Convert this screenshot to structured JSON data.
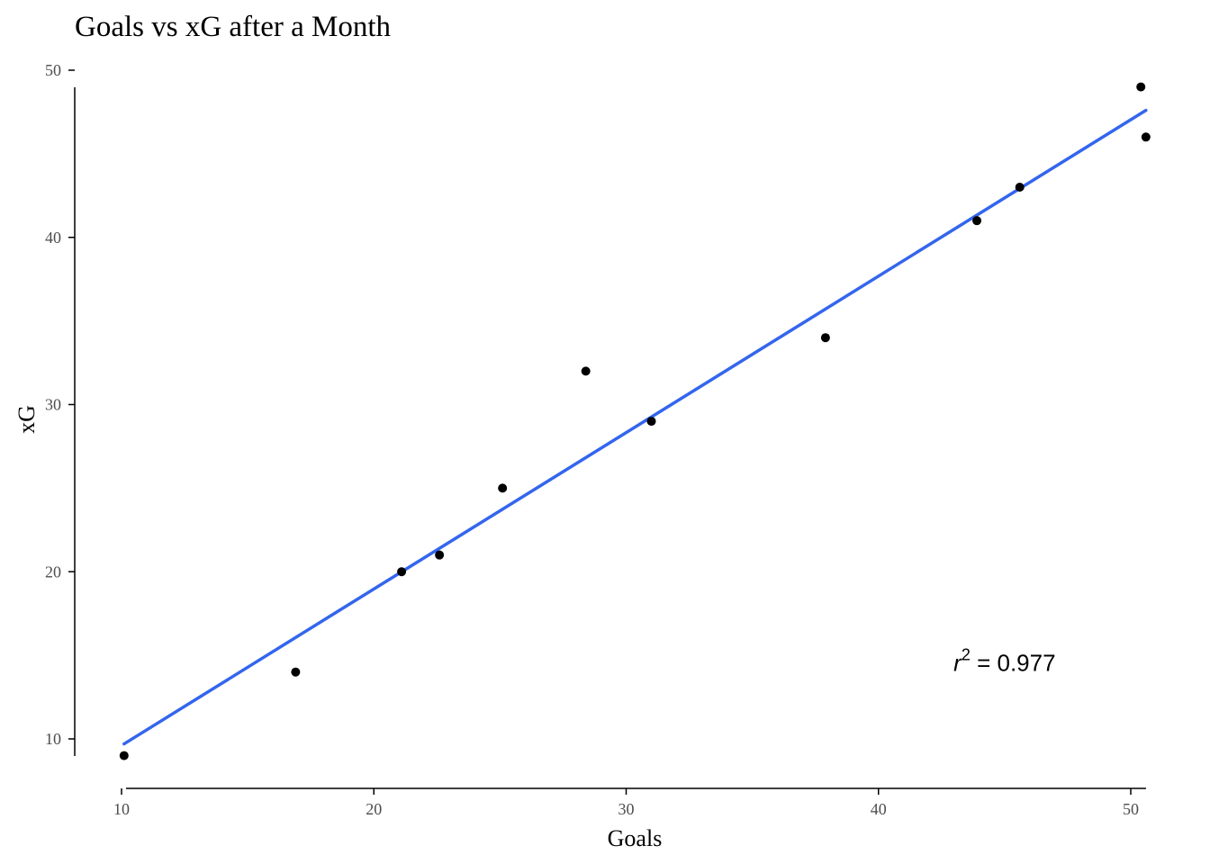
{
  "chart_data": {
    "type": "scatter",
    "title": "Goals vs xG after a Month",
    "xlabel": "Goals",
    "ylabel": "xG",
    "xlim": [
      10,
      50.5
    ],
    "ylim": [
      9,
      49
    ],
    "x_ticks": [
      10,
      20,
      30,
      40,
      50
    ],
    "y_ticks": [
      10,
      20,
      30,
      40,
      50
    ],
    "x_tick_labels": [
      "10",
      "20",
      "30",
      "40",
      "50"
    ],
    "y_tick_labels": [
      "10",
      "20",
      "30",
      "40",
      "50"
    ],
    "grid": false,
    "points": [
      {
        "x": 10.1,
        "y": 9
      },
      {
        "x": 16.9,
        "y": 14
      },
      {
        "x": 21.1,
        "y": 20
      },
      {
        "x": 22.6,
        "y": 21
      },
      {
        "x": 25.1,
        "y": 25
      },
      {
        "x": 28.4,
        "y": 32
      },
      {
        "x": 31.0,
        "y": 29
      },
      {
        "x": 37.9,
        "y": 34
      },
      {
        "x": 43.9,
        "y": 41
      },
      {
        "x": 45.6,
        "y": 43
      },
      {
        "x": 50.4,
        "y": 49
      },
      {
        "x": 50.6,
        "y": 46
      }
    ],
    "trend_line": {
      "x": [
        10.1,
        50.6
      ],
      "y": [
        9.7,
        47.6
      ]
    },
    "annotation": {
      "symbol": "r",
      "exponent": "2",
      "text": " = 0.977",
      "x": 45.0,
      "y": 14.5
    },
    "colors": {
      "points": "#000000",
      "trend_line": "#3366ee",
      "axis": "#000000",
      "tick_label": "#4d4d4d"
    }
  }
}
